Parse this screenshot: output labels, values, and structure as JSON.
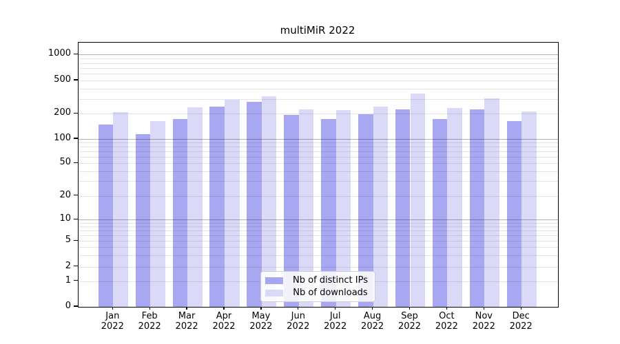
{
  "chart_data": {
    "type": "bar",
    "title": "multiMiR 2022",
    "x_months": [
      "Jan",
      "Feb",
      "Mar",
      "Apr",
      "May",
      "Jun",
      "Jul",
      "Aug",
      "Sep",
      "Oct",
      "Nov",
      "Dec"
    ],
    "x_year": "2022",
    "series": [
      {
        "name": "Nb of distinct IPs",
        "color": "#a7a7f2",
        "values": [
          150,
          115,
          175,
          245,
          280,
          195,
          175,
          200,
          230,
          175,
          230,
          165
        ]
      },
      {
        "name": "Nb of downloads",
        "color": "#dadaf8",
        "values": [
          212,
          165,
          240,
          300,
          330,
          228,
          226,
          245,
          355,
          235,
          310,
          215
        ]
      }
    ],
    "yscale": "log",
    "y_tick_labels": [
      "1000",
      "500",
      "200",
      "100",
      "50",
      "20",
      "10",
      "5",
      "2",
      "1",
      "0"
    ],
    "ylim": [
      0,
      1400
    ],
    "grid": true,
    "legend_position": "lower center"
  },
  "colors": {
    "background": "#ffffff",
    "spine": "#000000",
    "major_grid": "#b3b3b3",
    "minor_grid": "#e8e8e8",
    "text": "#000000"
  }
}
